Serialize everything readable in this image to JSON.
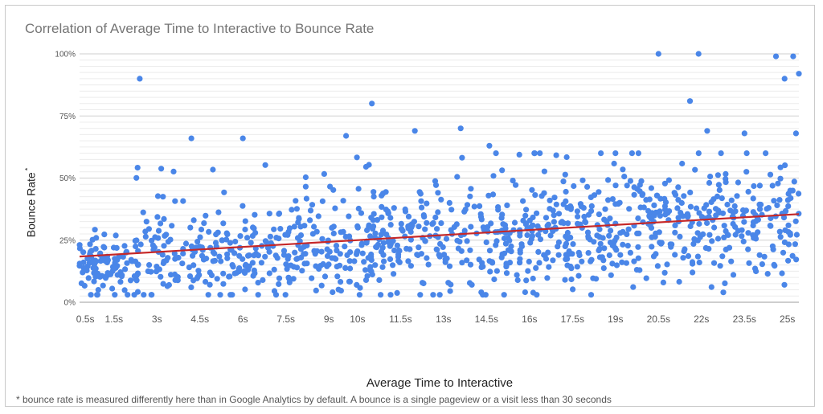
{
  "chart_data": {
    "type": "scatter",
    "title": "Correlation of Average Time to Interactive to Bounce Rate",
    "xlabel": "Average Time to Interactive",
    "ylabel": "Bounce Rate",
    "ylabel_marker": "*",
    "footnote": "* bounce rate is measured differently here than in Google Analytics by default. A bounce is a single pageview or a visit less than 30 seconds",
    "x_ticks": [
      "0.5s",
      "1.5s",
      "3s",
      "4.5s",
      "6s",
      "7.5s",
      "9s",
      "10s",
      "11.5s",
      "13s",
      "14.5s",
      "16s",
      "17.5s",
      "19s",
      "20.5s",
      "22s",
      "23.5s",
      "25s"
    ],
    "x_tick_values": [
      0.5,
      1.5,
      3,
      4.5,
      6,
      7.5,
      9,
      10,
      11.5,
      13,
      14.5,
      16,
      17.5,
      19,
      20.5,
      22,
      23.5,
      25
    ],
    "y_ticks": [
      "100%",
      "75%",
      "50%",
      "25%",
      "0%"
    ],
    "y_tick_values": [
      100,
      75,
      50,
      25,
      0
    ],
    "xlim": [
      0.3,
      25.4
    ],
    "ylim": [
      0,
      100
    ],
    "grid": true,
    "marker_color": "#4a86e8",
    "trendline": {
      "color": "#c62828",
      "x": [
        0.3,
        25.4
      ],
      "y": [
        18.4,
        35.5
      ]
    },
    "notable_points": [
      {
        "x": 2.4,
        "y": 90
      },
      {
        "x": 10.5,
        "y": 80
      },
      {
        "x": 21.6,
        "y": 81
      },
      {
        "x": 20.5,
        "y": 100
      },
      {
        "x": 21.9,
        "y": 100
      },
      {
        "x": 24.6,
        "y": 99
      },
      {
        "x": 25.2,
        "y": 99
      },
      {
        "x": 24.9,
        "y": 90
      },
      {
        "x": 25.4,
        "y": 92
      },
      {
        "x": 4.2,
        "y": 66
      },
      {
        "x": 6.0,
        "y": 66
      },
      {
        "x": 13.6,
        "y": 70
      },
      {
        "x": 12.0,
        "y": 69
      },
      {
        "x": 22.2,
        "y": 69
      },
      {
        "x": 23.5,
        "y": 68
      },
      {
        "x": 9.6,
        "y": 67
      },
      {
        "x": 14.6,
        "y": 63
      },
      {
        "x": 25.3,
        "y": 68
      }
    ],
    "generator": {
      "n": 1150,
      "seed": 7
    }
  }
}
